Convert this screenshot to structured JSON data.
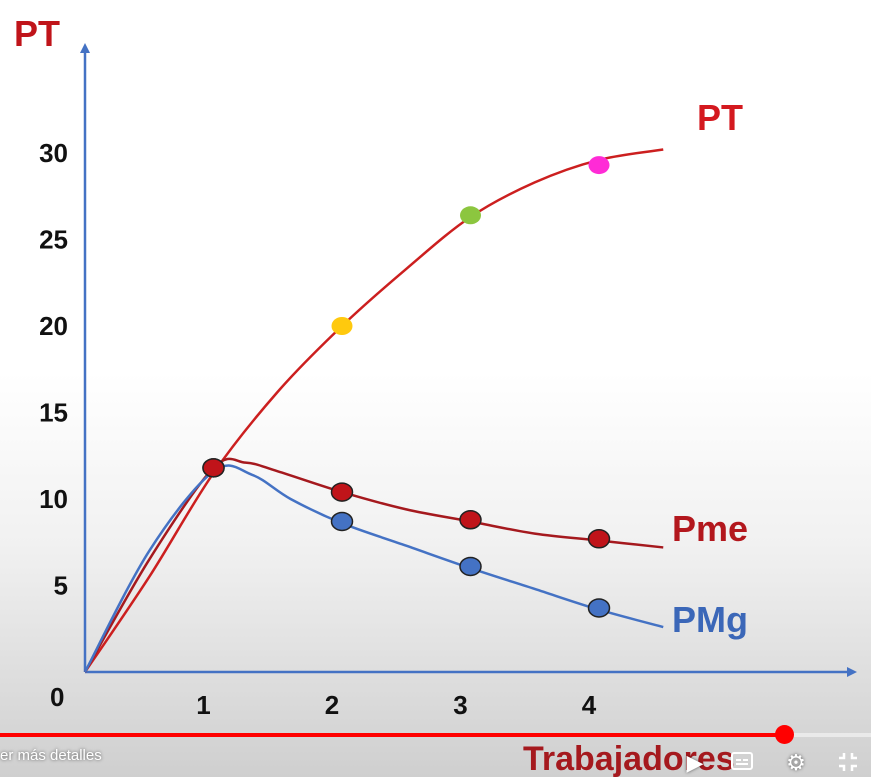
{
  "chart_data": {
    "type": "line",
    "ylabel": "PT",
    "xlabel": "Trabajadores",
    "origin_label": "0",
    "x_ticks": [
      1,
      2,
      3,
      4
    ],
    "y_ticks": [
      5,
      10,
      15,
      20,
      25,
      30
    ],
    "xlim": [
      0,
      5
    ],
    "ylim": [
      0,
      31
    ],
    "series": [
      {
        "name": "PT",
        "color": "#cc1f1f",
        "label_color": "#d4191f",
        "curve": [
          [
            0,
            0
          ],
          [
            0.5,
            5.5
          ],
          [
            1,
            11.5
          ],
          [
            1.5,
            16.2
          ],
          [
            2,
            20
          ],
          [
            2.5,
            23.3
          ],
          [
            3,
            26.3
          ],
          [
            3.5,
            28.3
          ],
          [
            4,
            29.6
          ],
          [
            4.5,
            30.2
          ]
        ],
        "markers": [
          {
            "x": 1,
            "y": 11.8,
            "color": "#c0141a"
          },
          {
            "x": 2,
            "y": 20,
            "color": "#ffc90e"
          },
          {
            "x": 3,
            "y": 26.4,
            "color": "#8cc63f"
          },
          {
            "x": 4,
            "y": 29.3,
            "color": "#ff2bd6"
          }
        ]
      },
      {
        "name": "Pme",
        "color": "#a5191e",
        "label_color": "#b3171d",
        "curve": [
          [
            0,
            0
          ],
          [
            0.5,
            6.5
          ],
          [
            1,
            11.8
          ],
          [
            1.25,
            12.1
          ],
          [
            1.5,
            11.6
          ],
          [
            2,
            10.4
          ],
          [
            2.5,
            9.4
          ],
          [
            3,
            8.7
          ],
          [
            3.5,
            8
          ],
          [
            4,
            7.6
          ],
          [
            4.5,
            7.2
          ]
        ],
        "markers": [
          {
            "x": 1,
            "y": 11.8,
            "color": "#c0141a"
          },
          {
            "x": 2,
            "y": 10.4,
            "color": "#c0141a"
          },
          {
            "x": 3,
            "y": 8.8,
            "color": "#c0141a"
          },
          {
            "x": 4,
            "y": 7.7,
            "color": "#c0141a"
          }
        ]
      },
      {
        "name": "PMg",
        "color": "#4472c4",
        "label_color": "#3b67b8",
        "curve": [
          [
            0,
            0
          ],
          [
            0.5,
            7
          ],
          [
            1,
            11.6
          ],
          [
            1.3,
            11.4
          ],
          [
            1.6,
            10
          ],
          [
            2,
            8.6
          ],
          [
            2.5,
            7.3
          ],
          [
            3,
            6
          ],
          [
            3.5,
            4.8
          ],
          [
            4,
            3.6
          ],
          [
            4.5,
            2.6
          ]
        ],
        "markers": [
          {
            "x": 2,
            "y": 8.7,
            "color": "#4472c4"
          },
          {
            "x": 3,
            "y": 6.1,
            "color": "#4472c4"
          },
          {
            "x": 4,
            "y": 3.7,
            "color": "#4472c4"
          }
        ]
      }
    ],
    "grid": false
  },
  "player": {
    "details_text": "er más detalles",
    "progress": 0.9,
    "icons": [
      "play-icon",
      "subtitles-icon",
      "settings-icon",
      "exit-fullscreen-icon"
    ]
  }
}
